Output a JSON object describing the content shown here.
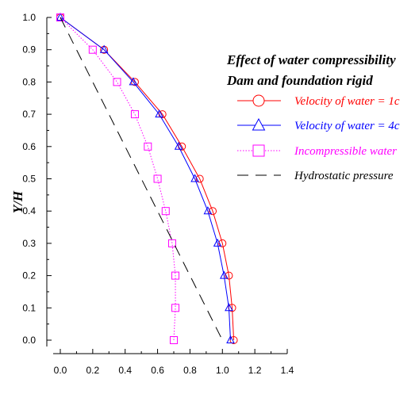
{
  "chart_data": {
    "type": "line",
    "title_lines": [
      "Effect of water compressibility",
      "Dam and foundation rigid"
    ],
    "xlabel": "",
    "ylabel": "Y/H",
    "xlim": [
      0.0,
      1.4
    ],
    "ylim": [
      0.0,
      1.0
    ],
    "x_ticks": [
      "0.0",
      "0.2",
      "0.4",
      "0.6",
      "0.8",
      "1.0",
      "1.2",
      "1.4"
    ],
    "y_ticks": [
      "0.0",
      "0.1",
      "0.2",
      "0.3",
      "0.4",
      "0.5",
      "0.6",
      "0.7",
      "0.8",
      "0.9",
      "1.0"
    ],
    "grid": false,
    "legend_position": "top-right",
    "series": [
      {
        "name": "Velocity of water = 1c",
        "color": "#ff0000",
        "line": "solid",
        "marker": "circle",
        "x": [
          1.07,
          1.06,
          1.04,
          1.0,
          0.94,
          0.86,
          0.75,
          0.63,
          0.46,
          0.27,
          0.0
        ],
        "y": [
          0.0,
          0.1,
          0.2,
          0.3,
          0.4,
          0.5,
          0.6,
          0.7,
          0.8,
          0.9,
          1.0
        ]
      },
      {
        "name": "Velocity of water = 4c",
        "color": "#0000ff",
        "line": "solid",
        "marker": "triangle",
        "x": [
          1.05,
          1.04,
          1.01,
          0.97,
          0.91,
          0.83,
          0.73,
          0.61,
          0.45,
          0.27,
          0.0
        ],
        "y": [
          0.0,
          0.1,
          0.2,
          0.3,
          0.4,
          0.5,
          0.6,
          0.7,
          0.8,
          0.9,
          1.0
        ]
      },
      {
        "name": "Incompressible water",
        "color": "#ff00ff",
        "line": "dotted",
        "marker": "square",
        "x": [
          0.7,
          0.71,
          0.71,
          0.69,
          0.65,
          0.6,
          0.54,
          0.46,
          0.35,
          0.2,
          0.0
        ],
        "y": [
          0.0,
          0.1,
          0.2,
          0.3,
          0.4,
          0.5,
          0.6,
          0.7,
          0.8,
          0.9,
          1.0
        ]
      },
      {
        "name": "Hydrostatic pressure",
        "color": "#000000",
        "line": "dashed",
        "marker": "none",
        "x": [
          0.0,
          1.0
        ],
        "y": [
          1.0,
          0.0
        ]
      }
    ]
  }
}
